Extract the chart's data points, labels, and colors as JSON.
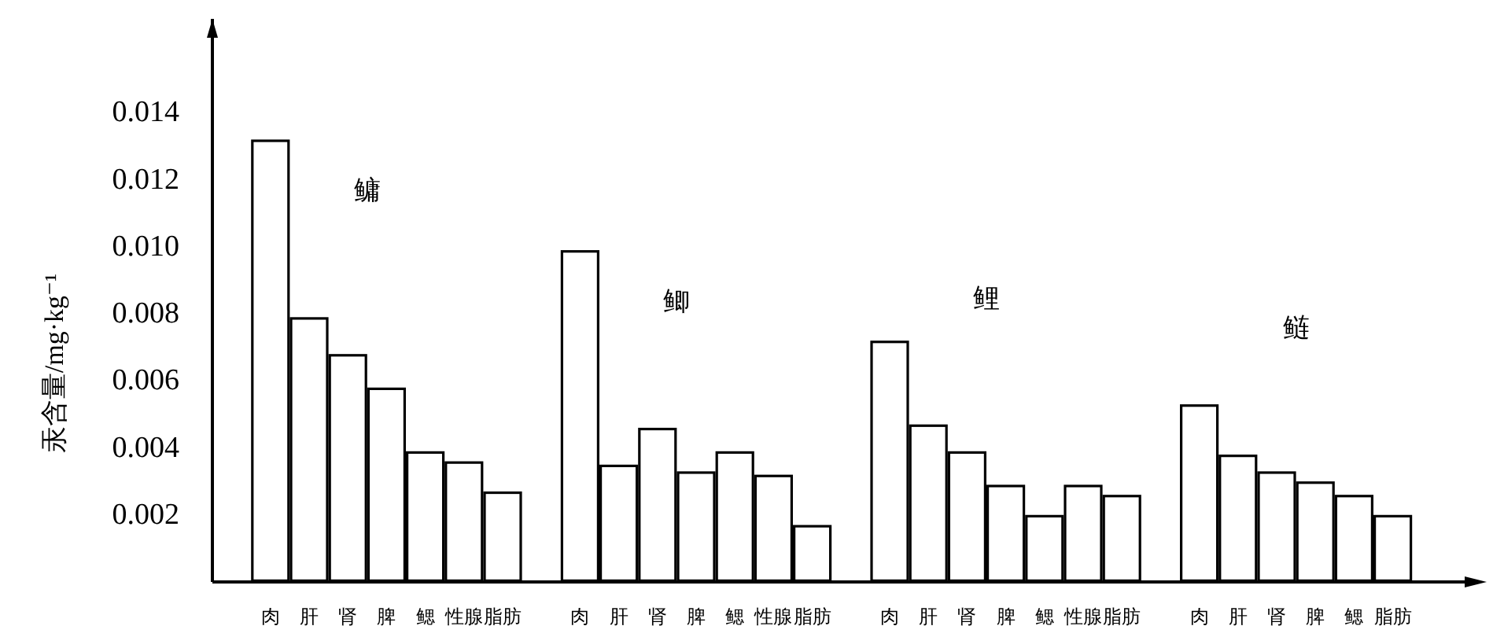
{
  "chart_data": {
    "type": "bar",
    "ylabel": "汞含量/mg·kg⁻¹",
    "categories": [
      null,
      "肉",
      "肝",
      "肾",
      "脾",
      "鳃",
      "性腺",
      "脂肪",
      null,
      "肉",
      "肝",
      "肾",
      "脾",
      "鳃",
      "性腺",
      "脂肪",
      null,
      "肉",
      "肝",
      "肾",
      "脾",
      "鳃",
      "性腺",
      "脂肪",
      null,
      "肉",
      "肝",
      "肾",
      "脾",
      "鳃",
      "脂肪"
    ],
    "series": [
      {
        "color": "#ffffff",
        "values": [
          null,
          0.0132,
          0.0079,
          0.0068,
          0.0058,
          0.0039,
          0.0036,
          0.0027,
          null,
          0.0099,
          0.0035,
          0.0046,
          0.0033,
          0.0039,
          0.0032,
          0.0017,
          null,
          0.0072,
          0.0047,
          0.0039,
          0.0029,
          0.002,
          0.0029,
          0.0026,
          null,
          0.0053,
          0.0038,
          0.0033,
          0.003,
          0.0026,
          0.002
        ]
      }
    ],
    "annotations": [
      "鳙",
      "鲫",
      "鲤",
      "鲢"
    ],
    "ylim": [
      0,
      0.0168
    ],
    "yticks": [
      0.002,
      0.004,
      0.006,
      0.008,
      {
        "value": 0.01,
        "label": "0.010"
      },
      0.012,
      0.014
    ],
    "grid": false
  }
}
